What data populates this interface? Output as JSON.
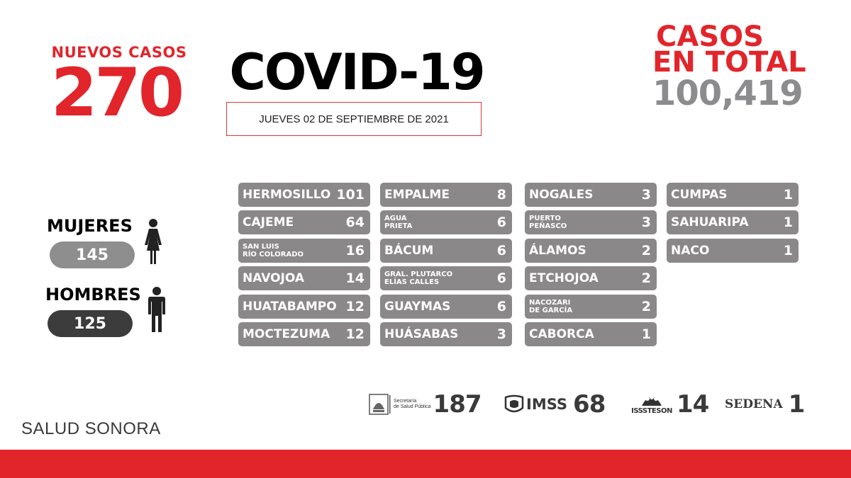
{
  "header": {
    "nuevos_label": "NUEVOS CASOS",
    "nuevos_value": "270",
    "title": "COVID-19",
    "date": "JUEVES 02 DE SEPTIEMBRE DE 2021",
    "total_line1": "CASOS",
    "total_line2": "EN TOTAL",
    "total_value": "100,419"
  },
  "gender": {
    "women_label": "MUJERES",
    "women_value": "145",
    "men_label": "HOMBRES",
    "men_value": "125"
  },
  "municipalities": {
    "col1": [
      {
        "name": "HERMOSILLO",
        "value": "101"
      },
      {
        "name": "CAJEME",
        "value": "64"
      },
      {
        "name": "SAN LUIS\nRÍO COLORADO",
        "value": "16",
        "small": true
      },
      {
        "name": "NAVOJOA",
        "value": "14"
      },
      {
        "name": "HUATABAMPO",
        "value": "12"
      },
      {
        "name": "MOCTEZUMA",
        "value": "12"
      }
    ],
    "col2": [
      {
        "name": "EMPALME",
        "value": "8"
      },
      {
        "name": "AGUA\nPRIETA",
        "value": "6",
        "small": true
      },
      {
        "name": "BÁCUM",
        "value": "6"
      },
      {
        "name": "GRAL. PLUTARCO\nELÍAS CALLES",
        "value": "6",
        "small": true
      },
      {
        "name": "GUAYMAS",
        "value": "6"
      },
      {
        "name": "HUÁSABAS",
        "value": "3"
      }
    ],
    "col3": [
      {
        "name": "NOGALES",
        "value": "3"
      },
      {
        "name": "PUERTO\nPEÑASCO",
        "value": "3",
        "small": true
      },
      {
        "name": "ÁLAMOS",
        "value": "2"
      },
      {
        "name": "ETCHOJOA",
        "value": "2"
      },
      {
        "name": "NACOZARI\nDE GARCÍA",
        "value": "2",
        "small": true
      },
      {
        "name": "CABORCA",
        "value": "1"
      }
    ],
    "col4": [
      {
        "name": "CUMPAS",
        "value": "1"
      },
      {
        "name": "SAHUARIPA",
        "value": "1"
      },
      {
        "name": "NACO",
        "value": "1"
      }
    ]
  },
  "institutions": {
    "ss_text": "Secretaría\nde Salud Pública",
    "ss_value": "187",
    "imss_name": "IMSS",
    "imss_value": "68",
    "issste_name": "ISSSTESON",
    "issste_value": "14",
    "sedena_name": "SEDENA",
    "sedena_value": "1"
  },
  "footer": {
    "brand": "SALUD SONORA"
  },
  "colors": {
    "red": "#e1252b",
    "gray": "#8a8889",
    "dark_pill": "#3c3c3c",
    "light_pill": "#8e8e8e"
  },
  "icons": [
    "woman-icon",
    "man-icon",
    "secretaria-logo-icon",
    "imss-logo-icon",
    "issste-logo-icon"
  ]
}
